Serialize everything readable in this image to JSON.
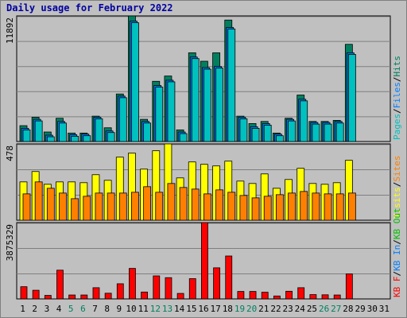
{
  "title": "Daily usage for February 2022",
  "colors": {
    "pages": "#00c0c0",
    "files": "#0080ff",
    "hits": "#00805f",
    "visits": "#ffff00",
    "sites": "#ff8000",
    "kbf": "#ff0000",
    "kbin": "#0080ff",
    "kbout": "#00c000",
    "weekend": "#00805f",
    "weekday": "#000000"
  },
  "chart_data": [
    {
      "type": "bar",
      "panel": "hits-files-pages",
      "max_label": "11892",
      "ylim": [
        0,
        11892
      ],
      "right_label": [
        {
          "text": "Pages",
          "color": "#00c0c0"
        },
        {
          "text": "/",
          "color": "#000000"
        },
        {
          "text": "Files",
          "color": "#0080ff"
        },
        {
          "text": "/",
          "color": "#000000"
        },
        {
          "text": "Hits",
          "color": "#00805f"
        }
      ],
      "series": [
        {
          "name": "Hits",
          "values": [
            1500,
            2300,
            900,
            2200,
            800,
            800,
            2400,
            1300,
            4500,
            11892,
            2100,
            5700,
            6200,
            1100,
            8400,
            7600,
            8400,
            11500,
            2400,
            1700,
            1900,
            800,
            2200,
            4400,
            1900,
            1900,
            2000,
            9200,
            0,
            0,
            0
          ]
        },
        {
          "name": "Files",
          "values": [
            1250,
            2100,
            600,
            1900,
            650,
            700,
            2300,
            1000,
            4300,
            11400,
            1900,
            5300,
            5800,
            900,
            8000,
            7000,
            7100,
            10800,
            2300,
            1400,
            1700,
            700,
            2100,
            4000,
            1800,
            1800,
            1900,
            8400,
            0,
            0,
            0
          ]
        }
      ]
    },
    {
      "type": "bar",
      "panel": "visits-sites",
      "max_label": "478",
      "ylim": [
        0,
        478
      ],
      "right_label": [
        {
          "text": "Visits",
          "color": "#ffff00"
        },
        {
          "text": "/",
          "color": "#000000"
        },
        {
          "text": "Sites",
          "color": "#ff8000"
        }
      ],
      "series": [
        {
          "name": "Visits",
          "values": [
            240,
            305,
            225,
            240,
            240,
            235,
            285,
            250,
            395,
            420,
            320,
            435,
            478,
            265,
            365,
            350,
            340,
            370,
            245,
            230,
            290,
            200,
            255,
            325,
            230,
            225,
            235,
            375,
            0,
            0,
            0
          ]
        },
        {
          "name": "Sites",
          "values": [
            165,
            240,
            200,
            170,
            135,
            150,
            170,
            170,
            170,
            175,
            210,
            175,
            230,
            205,
            195,
            165,
            190,
            175,
            155,
            140,
            150,
            160,
            170,
            180,
            170,
            165,
            165,
            170,
            0,
            0,
            0
          ]
        }
      ]
    },
    {
      "type": "bar",
      "panel": "kbytes",
      "max_label": "3875329",
      "ylim": [
        0,
        3875329
      ],
      "right_label": [
        {
          "text": "KB F",
          "color": "#ff0000"
        },
        {
          "text": "/",
          "color": "#000000"
        },
        {
          "text": "KB In",
          "color": "#0080ff"
        },
        {
          "text": "/",
          "color": "#000000"
        },
        {
          "text": "KB Out",
          "color": "#00c000"
        }
      ],
      "series": [
        {
          "name": "KB F",
          "values": [
            620000,
            440000,
            180000,
            1460000,
            200000,
            200000,
            570000,
            290000,
            770000,
            1550000,
            350000,
            1170000,
            1080000,
            280000,
            1030000,
            3875329,
            1580000,
            2180000,
            380000,
            380000,
            340000,
            150000,
            390000,
            570000,
            220000,
            210000,
            200000,
            1270000,
            0,
            0,
            0
          ]
        }
      ]
    }
  ],
  "days": [
    {
      "label": "1",
      "weekend": false
    },
    {
      "label": "2",
      "weekend": false
    },
    {
      "label": "3",
      "weekend": false
    },
    {
      "label": "4",
      "weekend": false
    },
    {
      "label": "5",
      "weekend": true
    },
    {
      "label": "6",
      "weekend": true
    },
    {
      "label": "7",
      "weekend": false
    },
    {
      "label": "8",
      "weekend": false
    },
    {
      "label": "9",
      "weekend": false
    },
    {
      "label": "10",
      "weekend": false
    },
    {
      "label": "11",
      "weekend": false
    },
    {
      "label": "12",
      "weekend": true
    },
    {
      "label": "13",
      "weekend": true
    },
    {
      "label": "14",
      "weekend": false
    },
    {
      "label": "15",
      "weekend": false
    },
    {
      "label": "16",
      "weekend": false
    },
    {
      "label": "17",
      "weekend": false
    },
    {
      "label": "18",
      "weekend": false
    },
    {
      "label": "19",
      "weekend": true
    },
    {
      "label": "20",
      "weekend": true
    },
    {
      "label": "21",
      "weekend": false
    },
    {
      "label": "22",
      "weekend": false
    },
    {
      "label": "23",
      "weekend": false
    },
    {
      "label": "24",
      "weekend": false
    },
    {
      "label": "25",
      "weekend": false
    },
    {
      "label": "26",
      "weekend": true
    },
    {
      "label": "27",
      "weekend": true
    },
    {
      "label": "28",
      "weekend": false
    },
    {
      "label": "29",
      "weekend": false
    },
    {
      "label": "30",
      "weekend": false
    },
    {
      "label": "31",
      "weekend": false
    }
  ]
}
